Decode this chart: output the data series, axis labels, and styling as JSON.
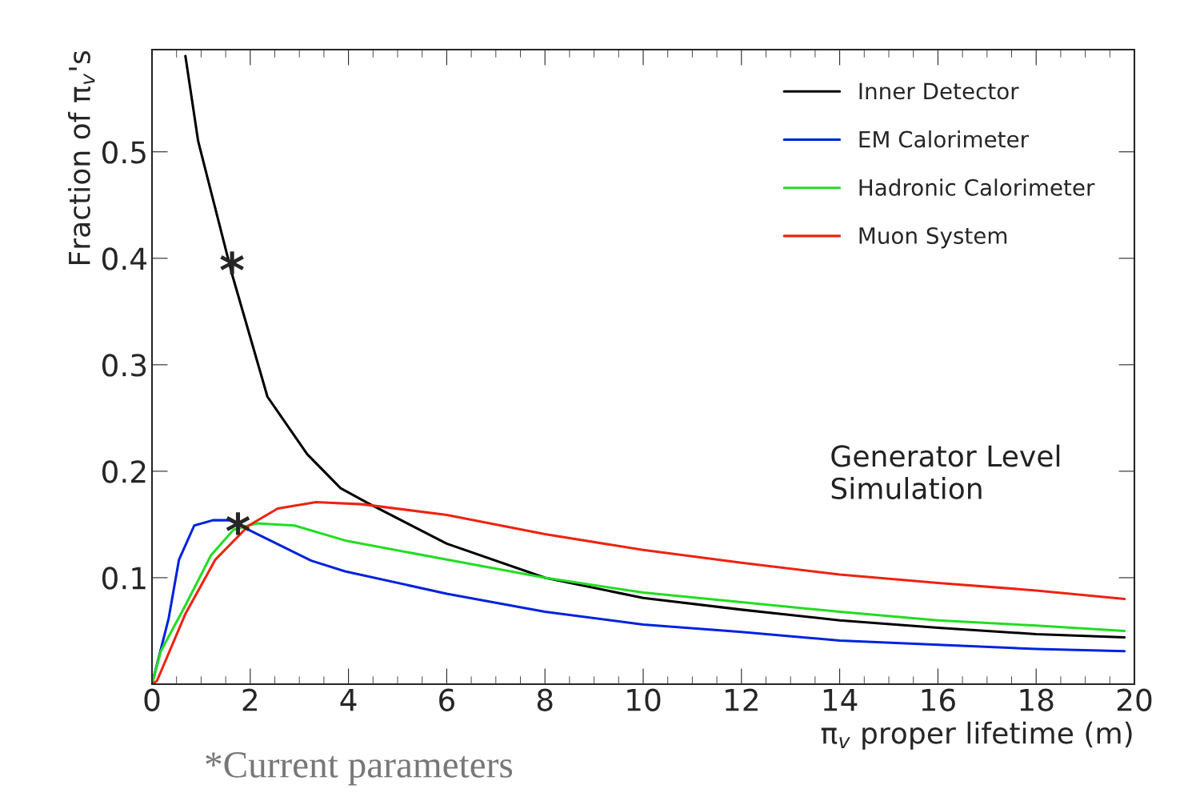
{
  "chart_data": {
    "type": "line",
    "xlabel": "π$_{v}$ proper lifetime (m)",
    "ylabel": "Fraction of π$_{v}$'s",
    "xlim": [
      0,
      20
    ],
    "ylim": [
      0,
      0.596
    ],
    "xticks": [
      0,
      2,
      4,
      6,
      8,
      10,
      12,
      14,
      16,
      18,
      20
    ],
    "yticks": [
      0.1,
      0.2,
      0.3,
      0.4,
      0.5
    ],
    "legend": "top right",
    "grid": false,
    "marker": "none",
    "line_style": "solid",
    "series": [
      {
        "name": "Inner Detector",
        "color": "#000000",
        "x": [
          0.68,
          0.94,
          1.63,
          2.35,
          3.16,
          3.84,
          4.4,
          6,
          8,
          10,
          12,
          14,
          16,
          18,
          19.8
        ],
        "values": [
          0.59,
          0.51,
          0.385,
          0.27,
          0.216,
          0.184,
          0.17,
          0.132,
          0.1,
          0.081,
          0.07,
          0.06,
          0.053,
          0.047,
          0.044
        ]
      },
      {
        "name": "EM Calorimeter",
        "color": "#0022dd",
        "x": [
          0,
          0.34,
          0.55,
          0.86,
          1.24,
          1.58,
          2.05,
          3.24,
          3.93,
          6,
          8,
          10,
          12,
          14,
          16,
          18,
          19.8
        ],
        "values": [
          0,
          0.062,
          0.117,
          0.149,
          0.154,
          0.154,
          0.143,
          0.116,
          0.106,
          0.085,
          0.068,
          0.056,
          0.049,
          0.041,
          0.037,
          0.033,
          0.031
        ]
      },
      {
        "name": "Hadronic Calorimeter",
        "color": "#22dd22",
        "x": [
          0,
          0.18,
          0.68,
          1.2,
          1.66,
          2.13,
          2.9,
          3.93,
          6,
          8,
          10,
          12,
          14,
          16,
          18,
          19.8
        ],
        "values": [
          0,
          0.031,
          0.074,
          0.121,
          0.145,
          0.151,
          0.149,
          0.135,
          0.117,
          0.1,
          0.086,
          0.077,
          0.068,
          0.06,
          0.055,
          0.05
        ]
      },
      {
        "name": "Muon System",
        "color": "#ee2211",
        "x": [
          0,
          0.1,
          0.68,
          1.29,
          1.97,
          2.56,
          3.34,
          4.27,
          6,
          8,
          10,
          12,
          14,
          16,
          18,
          19.8
        ],
        "values": [
          0,
          0.003,
          0.066,
          0.117,
          0.149,
          0.165,
          0.171,
          0.169,
          0.159,
          0.141,
          0.126,
          0.114,
          0.103,
          0.095,
          0.088,
          0.08
        ]
      }
    ],
    "annotations": [
      {
        "text": "*",
        "x": 1.63,
        "y": 0.385
      },
      {
        "text": "*",
        "x": 1.75,
        "y": 0.14
      },
      "Generator Level\nSimulation",
      "*Current parameters"
    ]
  }
}
